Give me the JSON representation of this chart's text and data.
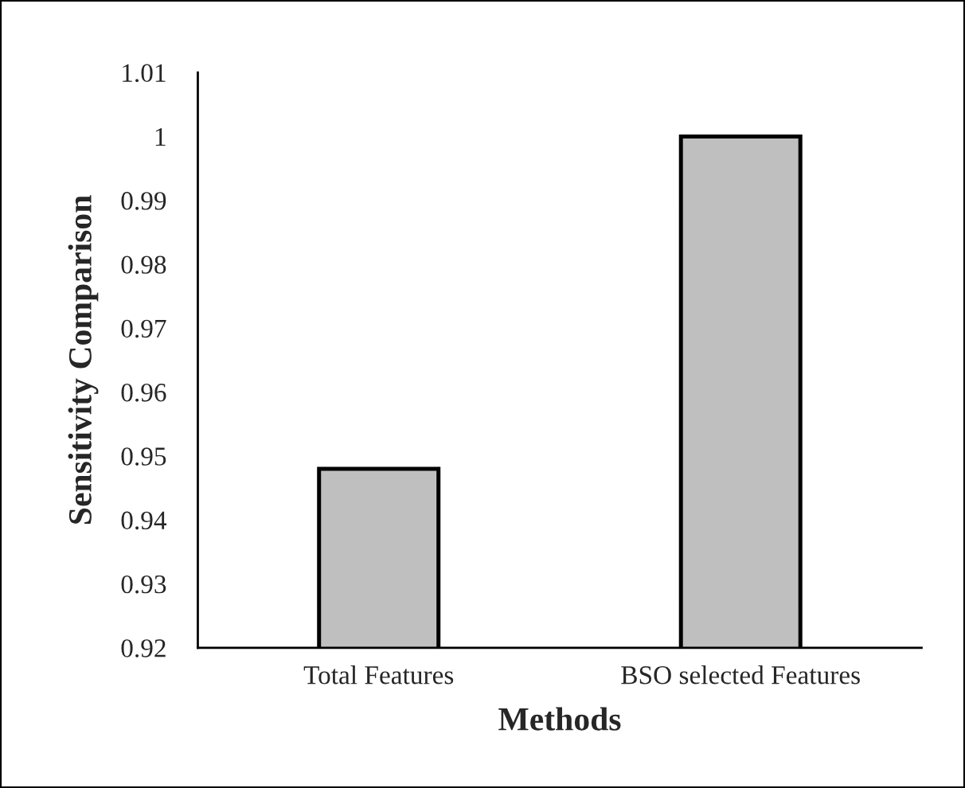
{
  "chart_data": {
    "type": "bar",
    "xlabel": "Methods",
    "ylabel": "Sensitivity Comparison",
    "categories": [
      "Total Features",
      "BSO selected Features"
    ],
    "values": [
      0.948,
      1.0
    ],
    "color": "#bfbfbf",
    "ylim": [
      0.92,
      1.01
    ],
    "yticks": [
      {
        "value": 0.92,
        "label": "0.92"
      },
      {
        "value": 0.93,
        "label": "0.93"
      },
      {
        "value": 0.94,
        "label": "0.94"
      },
      {
        "value": 0.95,
        "label": "0.95"
      },
      {
        "value": 0.96,
        "label": "0.96"
      },
      {
        "value": 0.97,
        "label": "0.97"
      },
      {
        "value": 0.98,
        "label": "0.98"
      },
      {
        "value": 0.99,
        "label": "0.99"
      },
      {
        "value": 1,
        "label": "1"
      },
      {
        "value": 1.01,
        "label": "1.01"
      }
    ],
    "grid": false,
    "legend": false
  }
}
